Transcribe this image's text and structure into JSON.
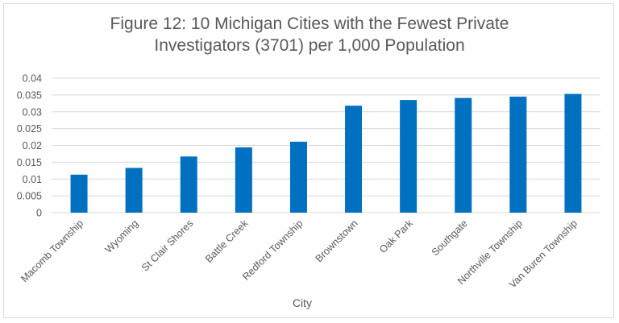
{
  "chart_data": {
    "type": "bar",
    "title": "Figure 12: 10 Michigan Cities with the Fewest Private Investigators (3701) per 1,000 Population",
    "title_lines": [
      "Figure 12: 10 Michigan Cities with the Fewest Private",
      "Investigators (3701) per 1,000 Population"
    ],
    "xlabel": "City",
    "ylabel": "",
    "categories": [
      "Macomb Township",
      "Wyoming",
      "St Clair Shores",
      "Battle Creek",
      "Redford Township",
      "Brownstown",
      "Oak Park",
      "Southgate",
      "Northville Township",
      "Van Buren Township"
    ],
    "values": [
      0.0113,
      0.0133,
      0.0167,
      0.0194,
      0.0211,
      0.0318,
      0.0335,
      0.0341,
      0.0345,
      0.0353
    ],
    "ylim": [
      0,
      0.04
    ],
    "y_ticks": [
      "0",
      "0.005",
      "0.01",
      "0.015",
      "0.02",
      "0.025",
      "0.03",
      "0.035",
      "0.04"
    ],
    "y_tick_values": [
      0,
      0.005,
      0.01,
      0.015,
      0.02,
      0.025,
      0.03,
      0.035,
      0.04
    ],
    "grid": true,
    "legend": "none",
    "bar_color": "#0070c0",
    "grid_color": "#d9d9d9"
  }
}
